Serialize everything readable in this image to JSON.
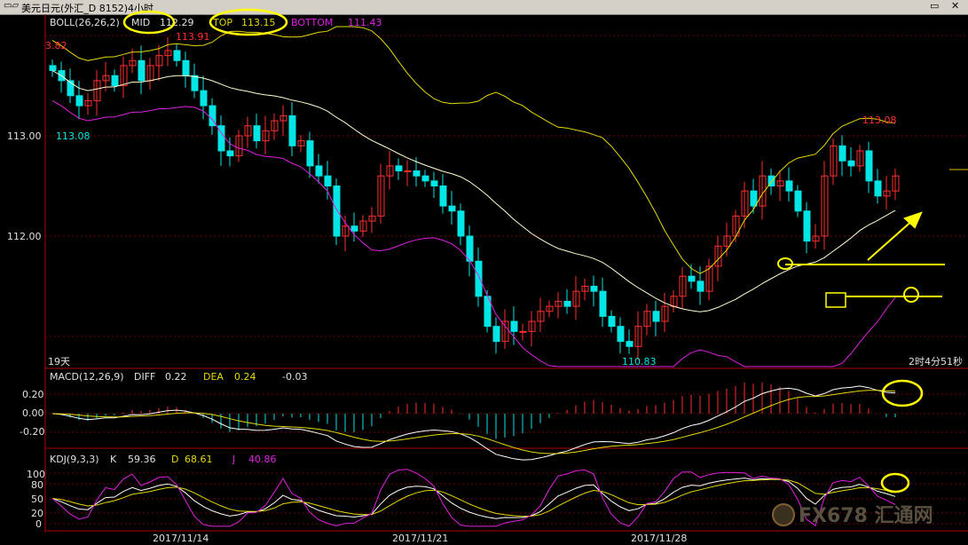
{
  "window": {
    "title": "美元日元(外汇_D 8152)4小时",
    "restore_icon": "restore-icon",
    "close_icon": "close-icon"
  },
  "boll": {
    "header": "BOLL(26,26,2)",
    "mid_label": "MID",
    "mid_value": "112.29",
    "top_label": "TOP",
    "top_value": "113.15",
    "bottom_label": "BOTTOM",
    "bottom_value": "111.43",
    "y_ticks": [
      "113.00",
      "112.00"
    ],
    "annotations": [
      "113.91",
      "113.08",
      "113.08",
      "110.83",
      "3.82"
    ],
    "periods_label": "19天",
    "countdown": "2时4分51秒"
  },
  "macd": {
    "header": "MACD(12,26,9)",
    "diff_label": "DIFF",
    "diff_value": "0.22",
    "dea_label": "DEA",
    "dea_value": "0.24",
    "macd_value": "-0.03",
    "y_ticks": [
      "0.20",
      "0.00",
      "-0.20"
    ]
  },
  "kdj": {
    "header": "KDJ(9,3,3)",
    "k_label": "K",
    "k_value": "59.36",
    "d_label": "D",
    "d_value": "68.61",
    "j_label": "J",
    "j_value": "40.86",
    "y_ticks": [
      "100",
      "80",
      "50",
      "20",
      "0"
    ]
  },
  "x_axis": {
    "dates": [
      "2017/11/14",
      "2017/11/21",
      "2017/11/28"
    ]
  },
  "watermark": "FX678 汇通网",
  "colors": {
    "up": "#ff3030",
    "down": "#00e5e5",
    "mid": "#ffffcc",
    "top": "#e6d800",
    "bottom": "#e020e0",
    "highlight": "#ffff00",
    "grid": "#800000"
  },
  "chart_data": {
    "type": "candlestick",
    "instrument": "美元日元",
    "period": "4小时",
    "series_close": [
      113.65,
      113.55,
      113.4,
      113.3,
      113.35,
      113.55,
      113.6,
      113.5,
      113.7,
      113.75,
      113.55,
      113.7,
      113.8,
      113.85,
      113.75,
      113.6,
      113.45,
      113.3,
      113.1,
      112.85,
      112.8,
      113.0,
      113.1,
      112.95,
      113.05,
      113.15,
      113.2,
      112.9,
      112.95,
      112.7,
      112.6,
      112.5,
      112.0,
      112.1,
      112.05,
      112.15,
      112.2,
      112.6,
      112.7,
      112.65,
      112.65,
      112.6,
      112.55,
      112.5,
      112.3,
      112.25,
      112.0,
      111.75,
      111.4,
      111.1,
      110.95,
      111.15,
      111.05,
      111.05,
      111.15,
      111.25,
      111.3,
      111.35,
      111.3,
      111.45,
      111.5,
      111.45,
      111.2,
      111.1,
      110.95,
      110.9,
      111.1,
      111.25,
      111.15,
      111.3,
      111.4,
      111.6,
      111.55,
      111.45,
      111.7,
      111.9,
      112.0,
      112.2,
      112.45,
      112.3,
      112.6,
      112.5,
      112.55,
      112.45,
      112.25,
      111.95,
      112.0,
      112.6,
      112.9,
      112.75,
      112.7,
      112.85,
      112.55,
      112.4,
      112.45,
      112.6
    ],
    "mid_value": 112.29,
    "top_value": 113.15,
    "bottom_value": 111.43,
    "macd": {
      "diff": 0.22,
      "dea": 0.24,
      "macd": -0.03
    },
    "kdj": {
      "k": 59.36,
      "d": 68.61,
      "j": 40.86
    }
  }
}
